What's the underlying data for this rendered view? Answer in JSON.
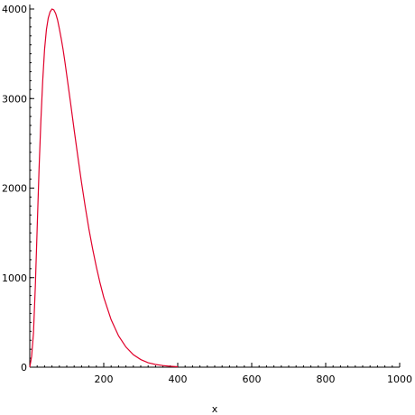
{
  "chart_data": {
    "type": "line",
    "title": "",
    "xlabel": "x",
    "ylabel": "",
    "xlim": [
      0,
      1000
    ],
    "ylim": [
      0,
      4000
    ],
    "x_ticks": [
      200,
      400,
      600,
      800,
      1000
    ],
    "x_tick_labels": [
      "200",
      "400",
      "600",
      "800",
      "1000"
    ],
    "y_ticks": [
      0,
      1000,
      2000,
      3000,
      4000
    ],
    "y_tick_labels": [
      "0",
      "1000",
      "2000",
      "3000",
      "4000"
    ],
    "grid": false,
    "legend": "none",
    "line_color": "#e0002a",
    "series": [
      {
        "x": [
          0,
          5,
          10,
          15,
          20,
          25,
          30,
          35,
          40,
          45,
          50,
          55,
          60,
          65,
          70,
          75,
          80,
          85,
          90,
          95,
          100,
          110,
          120,
          130,
          140,
          150,
          160,
          170,
          180,
          190,
          200,
          220,
          240,
          260,
          280,
          300,
          320,
          340,
          360,
          380,
          400
        ],
        "y": [
          0,
          120,
          380,
          900,
          1550,
          2200,
          2750,
          3200,
          3550,
          3770,
          3900,
          3970,
          4000,
          3990,
          3950,
          3880,
          3780,
          3670,
          3550,
          3410,
          3260,
          2960,
          2650,
          2350,
          2060,
          1790,
          1540,
          1320,
          1120,
          940,
          780,
          530,
          350,
          225,
          140,
          85,
          50,
          30,
          18,
          10,
          5
        ]
      }
    ]
  }
}
